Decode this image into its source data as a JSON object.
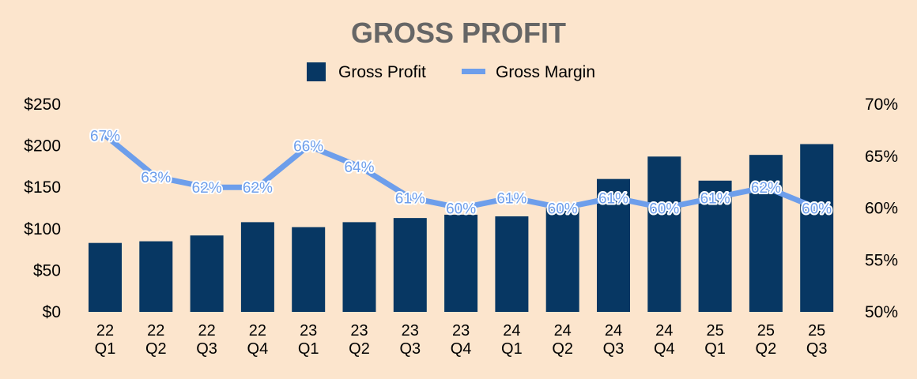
{
  "colors": {
    "background": "#fce5cd",
    "bar": "#073763",
    "line": "#6d9eeb",
    "title": "#666666"
  },
  "chart_data": {
    "type": "bar",
    "title": "GROSS PROFIT",
    "legend": [
      "Gross Profit",
      "Gross Margin"
    ],
    "legend_position": "top-center",
    "categories": [
      [
        "22",
        "Q1"
      ],
      [
        "22",
        "Q2"
      ],
      [
        "22",
        "Q3"
      ],
      [
        "22",
        "Q4"
      ],
      [
        "23",
        "Q1"
      ],
      [
        "23",
        "Q2"
      ],
      [
        "23",
        "Q3"
      ],
      [
        "23",
        "Q4"
      ],
      [
        "24",
        "Q1"
      ],
      [
        "24",
        "Q2"
      ],
      [
        "24",
        "Q3"
      ],
      [
        "24",
        "Q4"
      ],
      [
        "25",
        "Q1"
      ],
      [
        "25",
        "Q2"
      ],
      [
        "25",
        "Q3"
      ]
    ],
    "series": [
      {
        "name": "Gross Profit",
        "type": "bar",
        "axis": "left",
        "values": [
          83,
          85,
          92,
          108,
          102,
          108,
          113,
          117,
          115,
          125,
          160,
          187,
          158,
          189,
          202
        ]
      },
      {
        "name": "Gross Margin",
        "type": "line",
        "axis": "right",
        "values": [
          67,
          63,
          62,
          62,
          66,
          64,
          61,
          60,
          61,
          60,
          61,
          60,
          61,
          62,
          60
        ],
        "labels": [
          "67%",
          "63%",
          "62%",
          "62%",
          "66%",
          "64%",
          "61%",
          "60%",
          "61%",
          "60%",
          "61%",
          "60%",
          "61%",
          "62%",
          "60%"
        ]
      }
    ],
    "y_left": {
      "ylim": [
        0,
        250
      ],
      "ticks": [
        0,
        50,
        100,
        150,
        200,
        250
      ],
      "tick_labels": [
        "$0",
        "$50",
        "$100",
        "$150",
        "$200",
        "$250"
      ]
    },
    "y_right": {
      "ylim": [
        50,
        70
      ],
      "ticks": [
        50,
        55,
        60,
        65,
        70
      ],
      "tick_labels": [
        "50%",
        "55%",
        "60%",
        "65%",
        "70%"
      ]
    },
    "grid": false
  }
}
